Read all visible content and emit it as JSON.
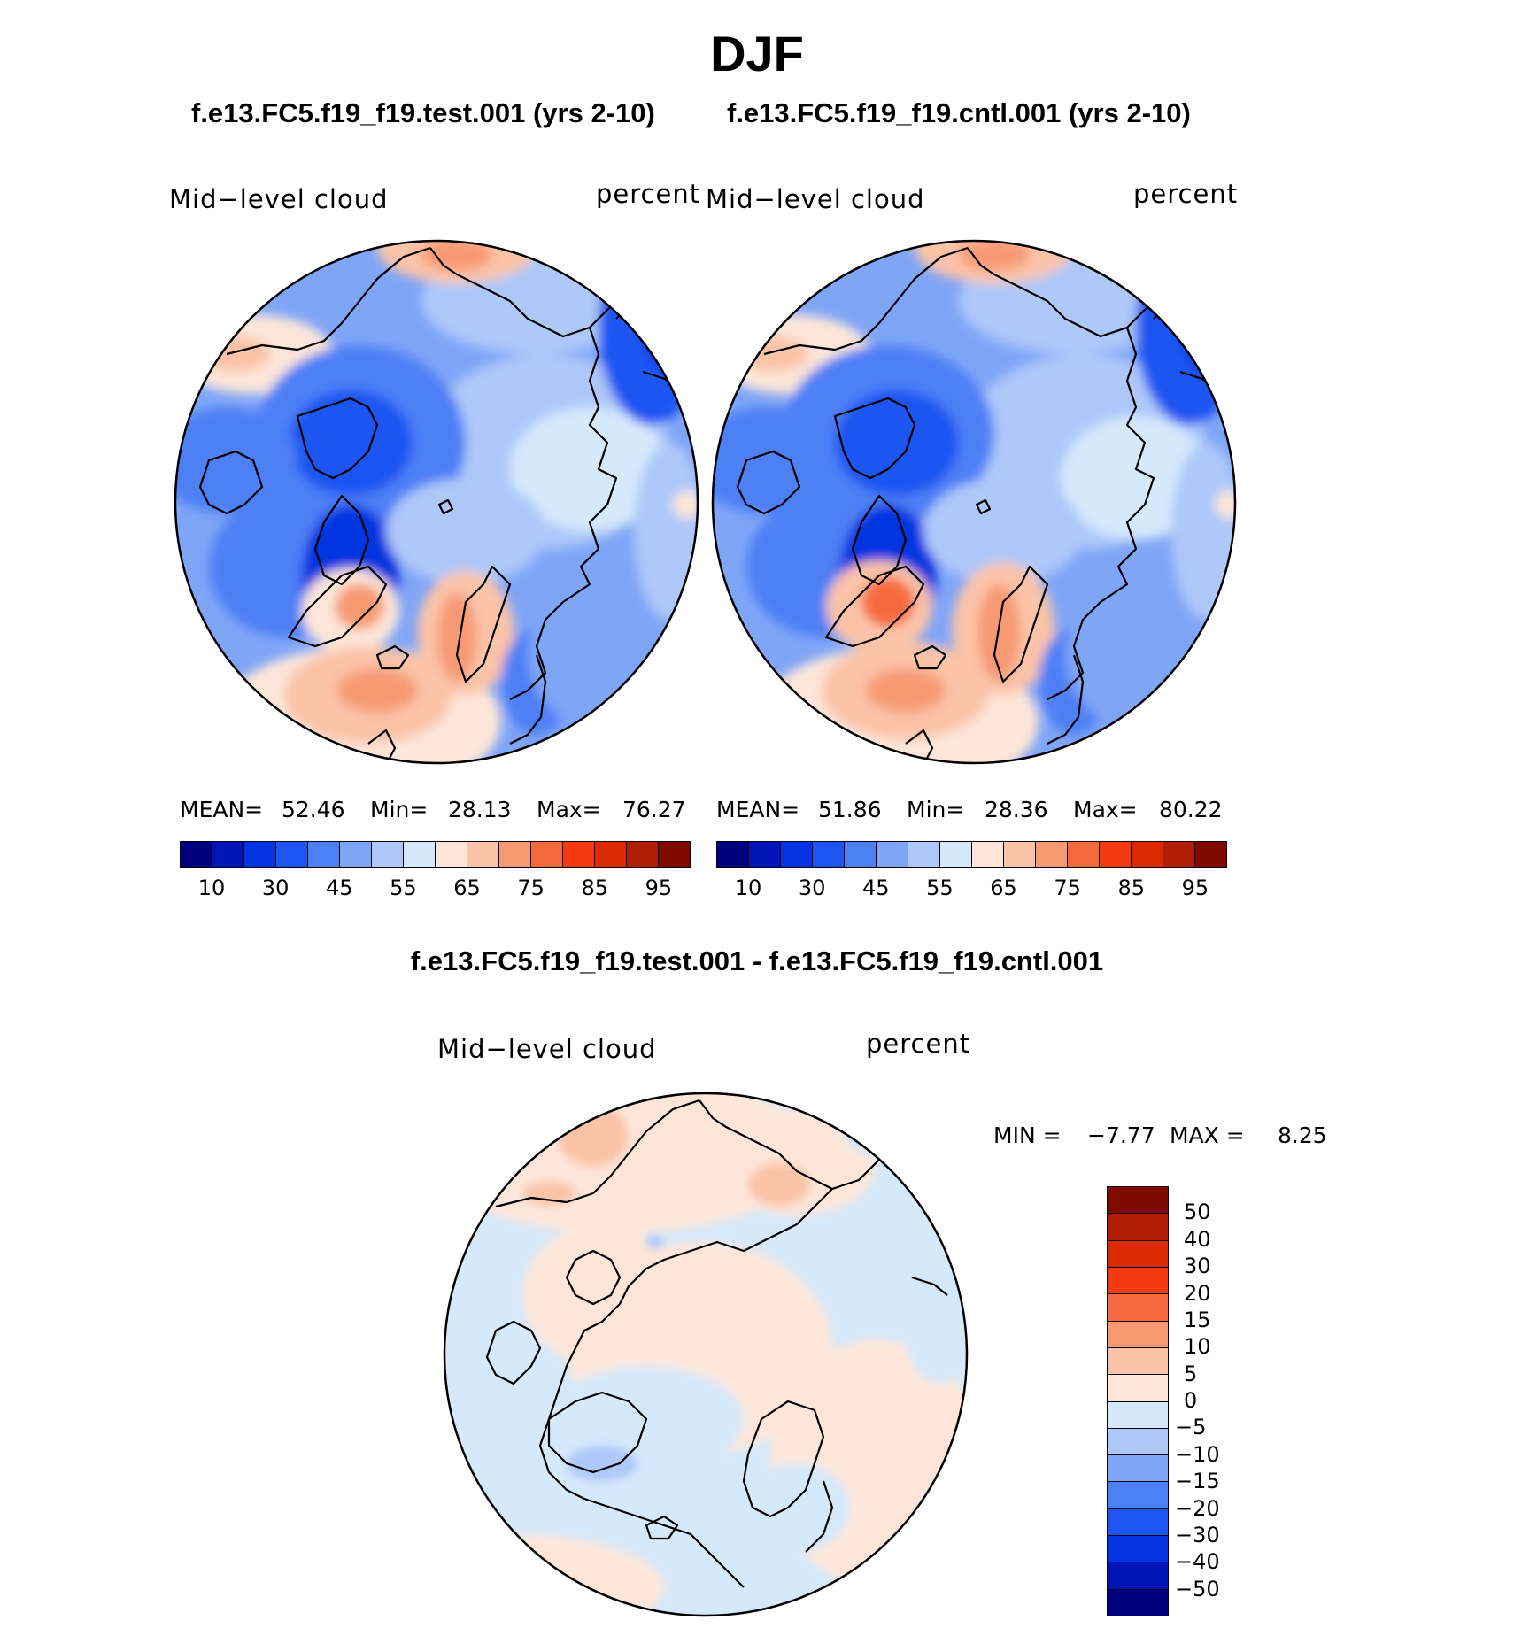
{
  "season": "DJF",
  "panels": {
    "test": {
      "title": "f.e13.FC5.f19_f19.test.001 (yrs 2-10)",
      "variable": "Mid−level cloud",
      "units": "percent",
      "stats": {
        "mean_label": "MEAN=",
        "mean": "52.46",
        "min_label": "Min=",
        "min": "28.13",
        "max_label": "Max=",
        "max": "76.27"
      }
    },
    "cntl": {
      "title": "f.e13.FC5.f19_f19.cntl.001 (yrs 2-10)",
      "variable": "Mid−level cloud",
      "units": "percent",
      "stats": {
        "mean_label": "MEAN=",
        "mean": "51.86",
        "min_label": "Min=",
        "min": "28.36",
        "max_label": "Max=",
        "max": "80.22"
      }
    },
    "diff": {
      "title": "f.e13.FC5.f19_f19.test.001 - f.e13.FC5.f19_f19.cntl.001",
      "variable": "Mid−level cloud",
      "units": "percent",
      "stats": {
        "min_label": "MIN =",
        "min": "−7.77",
        "max_label": "MAX =",
        "max": "8.25"
      }
    }
  },
  "colorbars": {
    "main": {
      "colors": [
        "#00007d",
        "#0015b5",
        "#0535e0",
        "#1f55f2",
        "#4d7ff5",
        "#7fa5f7",
        "#adc8f9",
        "#d6e9fb",
        "#fde6d9",
        "#fbc3a8",
        "#f79a73",
        "#f56a3d",
        "#f43a11",
        "#dc2a05",
        "#b01f05",
        "#7f0a00"
      ],
      "ticks": [
        "10",
        "30",
        "45",
        "55",
        "65",
        "75",
        "85",
        "95"
      ]
    },
    "diff": {
      "colors": [
        "#7f0a00",
        "#b01f05",
        "#dc2a05",
        "#f43a11",
        "#f56a3d",
        "#f79a73",
        "#fbc3a8",
        "#fde6d9",
        "#d6e9fb",
        "#adc8f9",
        "#7fa5f7",
        "#4d7ff5",
        "#1f55f2",
        "#0535e0",
        "#0015b5",
        "#00007d"
      ],
      "ticks": [
        "50",
        "40",
        "30",
        "20",
        "15",
        "10",
        "5",
        "0",
        "−5",
        "−10",
        "−15",
        "−20",
        "−30",
        "−40",
        "−50"
      ]
    }
  }
}
